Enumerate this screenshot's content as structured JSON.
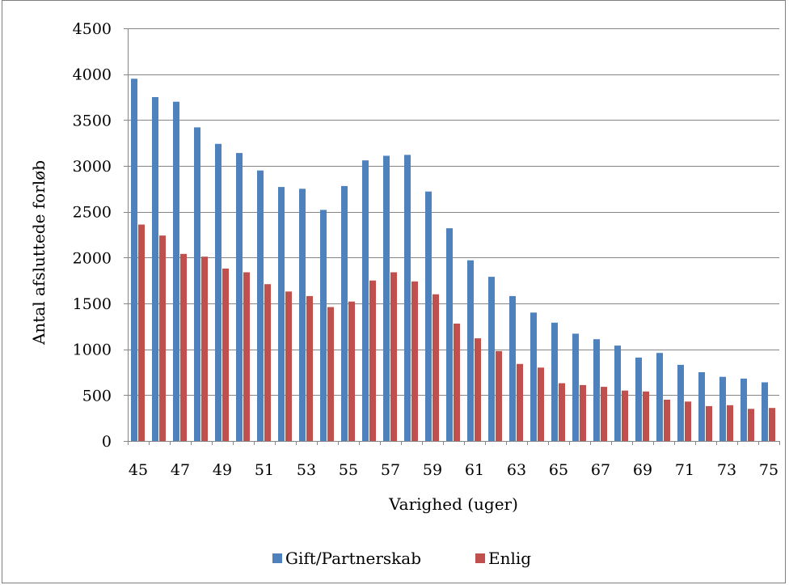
{
  "chart_data": {
    "type": "bar",
    "xlabel": "Varighed (uger)",
    "ylabel": "Antal afsluttede forløb",
    "ylim": [
      0,
      4500
    ],
    "yticks": [
      0,
      500,
      1000,
      1500,
      2000,
      2500,
      3000,
      3500,
      4000,
      4500
    ],
    "grid": true,
    "legend_position": "bottom",
    "categories": [
      45,
      46,
      47,
      48,
      49,
      50,
      51,
      52,
      53,
      54,
      55,
      56,
      57,
      58,
      59,
      60,
      61,
      62,
      63,
      64,
      65,
      66,
      67,
      68,
      69,
      70,
      71,
      72,
      73,
      74,
      75
    ],
    "xtick_labels": [
      "45",
      "47",
      "49",
      "51",
      "53",
      "55",
      "57",
      "59",
      "61",
      "63",
      "65",
      "67",
      "69",
      "71",
      "73",
      "75"
    ],
    "series": [
      {
        "name": "Gift/Partnerskab",
        "color": "#4f81bd",
        "values": [
          3950,
          3750,
          3700,
          3420,
          3240,
          3140,
          2950,
          2770,
          2750,
          2520,
          2780,
          3060,
          3110,
          3120,
          2720,
          2320,
          1970,
          1790,
          1580,
          1400,
          1290,
          1170,
          1110,
          1040,
          910,
          960,
          830,
          750,
          700,
          680,
          640
        ]
      },
      {
        "name": "Enlig",
        "color": "#c0504d",
        "values": [
          2360,
          2240,
          2040,
          2010,
          1880,
          1840,
          1710,
          1630,
          1580,
          1460,
          1520,
          1750,
          1840,
          1740,
          1600,
          1280,
          1120,
          980,
          840,
          800,
          630,
          610,
          590,
          550,
          540,
          450,
          430,
          380,
          390,
          350,
          360
        ]
      }
    ]
  }
}
